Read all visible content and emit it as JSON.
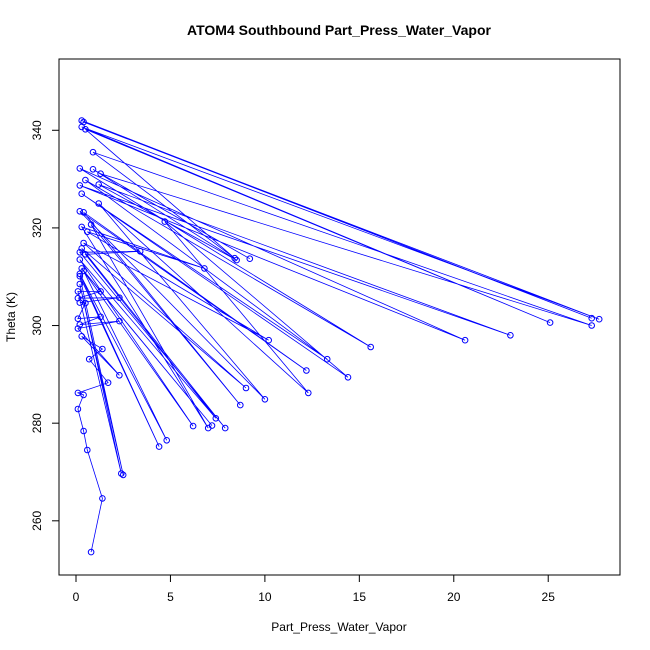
{
  "chart_data": {
    "type": "line",
    "title": "ATOM4 Southbound Part_Press_Water_Vapor",
    "xlabel": "Part_Press_Water_Vapor",
    "ylabel": "Theta (K)",
    "xlim": [
      -0.9,
      28.8
    ],
    "ylim": [
      248.9,
      354.6
    ],
    "xticks": [
      0,
      5,
      10,
      15,
      20,
      25
    ],
    "yticks": [
      260,
      280,
      300,
      320,
      340
    ],
    "line_color": "#0000FF",
    "marker": "open-circle",
    "grid": false,
    "legend": "none",
    "series": [
      {
        "points": [
          [
            0.3,
            342.0
          ],
          [
            27.3,
            301.5
          ],
          [
            0.4,
            341.7
          ],
          [
            27.7,
            301.3
          ],
          [
            0.3,
            340.7
          ],
          [
            25.1,
            300.6
          ],
          [
            0.5,
            340.2
          ],
          [
            8.4,
            313.8
          ],
          [
            0.9,
            335.5
          ],
          [
            27.3,
            300.0
          ],
          [
            1.3,
            331.1
          ],
          [
            9.2,
            313.7
          ],
          [
            0.9,
            332.0
          ],
          [
            8.5,
            313.4
          ],
          [
            1.2,
            328.9
          ],
          [
            23.0,
            298.0
          ],
          [
            0.2,
            328.7
          ],
          [
            20.6,
            297.0
          ],
          [
            0.2,
            332.2
          ],
          [
            15.6,
            295.6
          ],
          [
            0.5,
            329.8
          ],
          [
            13.3,
            293.1
          ],
          [
            0.3,
            327.0
          ],
          [
            14.4,
            289.4
          ],
          [
            4.7,
            321.3
          ],
          [
            12.3,
            286.2
          ],
          [
            1.2,
            325.0
          ],
          [
            10.0,
            284.9
          ],
          [
            0.2,
            323.4
          ],
          [
            12.2,
            290.8
          ],
          [
            0.4,
            323.2
          ],
          [
            8.7,
            283.7
          ],
          [
            0.8,
            320.7
          ],
          [
            7.0,
            279.0
          ],
          [
            0.3,
            320.2
          ],
          [
            6.8,
            311.7
          ],
          [
            0.6,
            319.2
          ],
          [
            10.2,
            297.0
          ],
          [
            0.4,
            316.9
          ],
          [
            9.0,
            287.2
          ],
          [
            0.3,
            315.8
          ],
          [
            7.9,
            279.0
          ],
          [
            0.2,
            315.0
          ],
          [
            3.4,
            315.2
          ],
          [
            0.5,
            314.6
          ],
          [
            7.4,
            281.0
          ],
          [
            0.2,
            313.5
          ],
          [
            6.2,
            279.4
          ],
          [
            0.3,
            311.7
          ],
          [
            7.2,
            279.5
          ],
          [
            0.4,
            311.2
          ],
          [
            4.8,
            276.5
          ],
          [
            0.2,
            310.6
          ],
          [
            4.4,
            275.2
          ],
          [
            0.2,
            310.1
          ],
          [
            2.5,
            269.4
          ],
          [
            0.2,
            308.5
          ],
          [
            2.4,
            269.7
          ],
          [
            0.1,
            307.0
          ],
          [
            1.3,
            307.0
          ],
          [
            0.1,
            305.6
          ],
          [
            2.3,
            305.7
          ],
          [
            0.2,
            304.7
          ],
          [
            0.5,
            304.6
          ],
          [
            0.1,
            301.4
          ],
          [
            1.3,
            301.8
          ],
          [
            0.2,
            300.2
          ],
          [
            2.3,
            300.9
          ],
          [
            0.1,
            299.4
          ],
          [
            2.3,
            289.8
          ],
          [
            0.3,
            297.8
          ],
          [
            1.4,
            295.2
          ],
          [
            0.7,
            293.1
          ],
          [
            1.7,
            288.3
          ],
          [
            0.1,
            286.2
          ],
          [
            0.4,
            285.8
          ],
          [
            0.1,
            282.9
          ],
          [
            0.4,
            278.4
          ],
          [
            0.6,
            274.5
          ],
          [
            1.4,
            264.6
          ],
          [
            0.8,
            253.6
          ]
        ]
      }
    ]
  }
}
